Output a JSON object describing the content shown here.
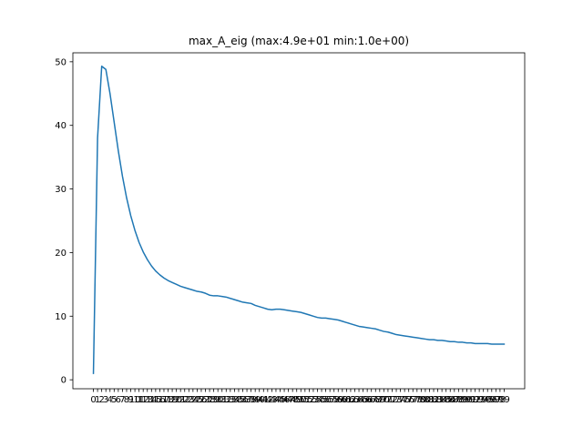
{
  "chart_data": {
    "type": "line",
    "title": "max_A_eig (max:4.9e+01 min:1.0e+00)",
    "xlabel": "",
    "ylabel": "",
    "x_tick_labels": [
      "0",
      "1",
      "2",
      "3",
      "4",
      "5",
      "6",
      "7",
      "8",
      "9",
      "10",
      "11",
      "12",
      "13",
      "14",
      "15",
      "16",
      "17",
      "18",
      "19",
      "20",
      "21",
      "22",
      "23",
      "24",
      "25",
      "26",
      "27",
      "28",
      "29",
      "30",
      "31",
      "32",
      "33",
      "34",
      "35",
      "36",
      "37",
      "38",
      "39",
      "40",
      "41",
      "42",
      "43",
      "44",
      "45",
      "46",
      "47",
      "48",
      "49",
      "50",
      "51",
      "52",
      "53",
      "54",
      "55",
      "56",
      "57",
      "58",
      "59",
      "60",
      "61",
      "62",
      "63",
      "64",
      "65",
      "66",
      "67",
      "68",
      "69",
      "70",
      "71",
      "72",
      "73",
      "74",
      "75",
      "76",
      "77",
      "78",
      "79",
      "80",
      "81",
      "82",
      "83",
      "84",
      "85",
      "86",
      "87",
      "88",
      "89",
      "90",
      "91",
      "92",
      "93",
      "94",
      "95",
      "96",
      "97",
      "98",
      "99"
    ],
    "y_ticks": [
      0,
      10,
      20,
      30,
      40,
      50
    ],
    "xlim": [
      -4.95,
      103.95
    ],
    "ylim": [
      -1.41,
      51.41
    ],
    "grid": false,
    "line_color": "#1f77b4",
    "x": [
      0,
      1,
      2,
      3,
      4,
      5,
      6,
      7,
      8,
      9,
      10,
      11,
      12,
      13,
      14,
      15,
      16,
      17,
      18,
      19,
      20,
      21,
      22,
      23,
      24,
      25,
      26,
      27,
      28,
      29,
      30,
      31,
      32,
      33,
      34,
      35,
      36,
      37,
      38,
      39,
      40,
      41,
      42,
      43,
      44,
      45,
      46,
      47,
      48,
      49,
      50,
      51,
      52,
      53,
      54,
      55,
      56,
      57,
      58,
      59,
      60,
      61,
      62,
      63,
      64,
      65,
      66,
      67,
      68,
      69,
      70,
      71,
      72,
      73,
      74,
      75,
      76,
      77,
      78,
      79,
      80,
      81,
      82,
      83,
      84,
      85,
      86,
      87,
      88,
      89,
      90,
      91,
      92,
      93,
      94,
      95,
      96,
      97,
      98,
      99
    ],
    "values": [
      1.0,
      38.0,
      49.3,
      48.8,
      45.0,
      40.5,
      36.0,
      32.0,
      28.6,
      25.8,
      23.5,
      21.6,
      20.1,
      18.9,
      17.9,
      17.1,
      16.5,
      16.0,
      15.6,
      15.3,
      15.0,
      14.7,
      14.5,
      14.3,
      14.1,
      13.9,
      13.8,
      13.6,
      13.3,
      13.2,
      13.2,
      13.1,
      13.0,
      12.8,
      12.6,
      12.4,
      12.2,
      12.1,
      12.0,
      11.7,
      11.5,
      11.3,
      11.1,
      11.0,
      11.1,
      11.1,
      11.0,
      10.9,
      10.8,
      10.7,
      10.6,
      10.4,
      10.2,
      10.0,
      9.8,
      9.7,
      9.7,
      9.6,
      9.5,
      9.4,
      9.2,
      9.0,
      8.8,
      8.6,
      8.4,
      8.3,
      8.2,
      8.1,
      8.0,
      7.8,
      7.6,
      7.5,
      7.3,
      7.1,
      7.0,
      6.9,
      6.8,
      6.7,
      6.6,
      6.5,
      6.4,
      6.3,
      6.3,
      6.2,
      6.2,
      6.1,
      6.0,
      6.0,
      5.9,
      5.9,
      5.8,
      5.8,
      5.7,
      5.7,
      5.7,
      5.7,
      5.6,
      5.6,
      5.6,
      5.6
    ]
  }
}
